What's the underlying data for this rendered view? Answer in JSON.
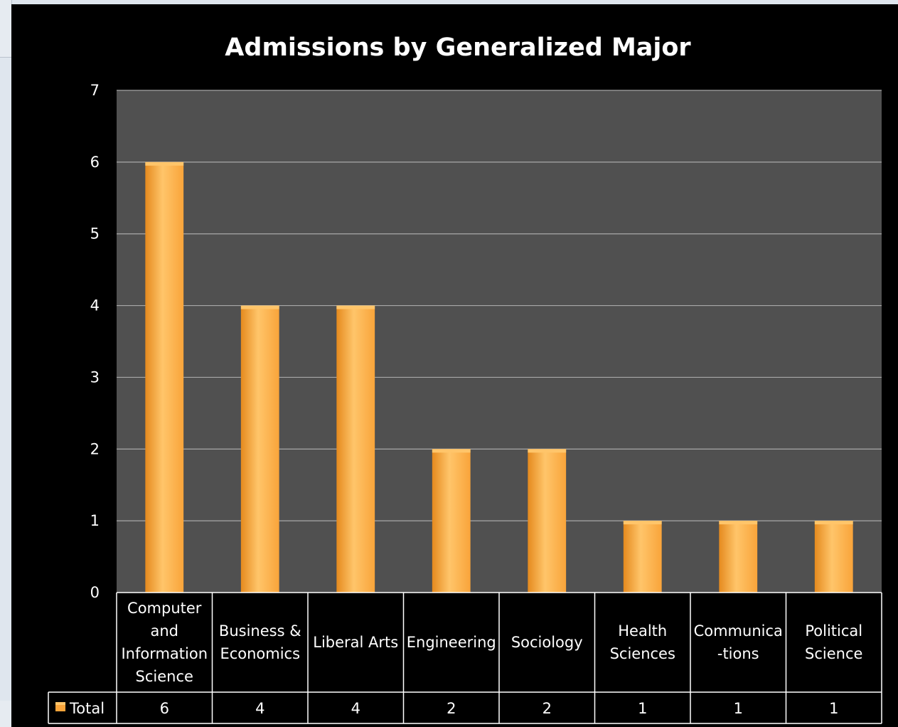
{
  "chart_data": {
    "type": "bar",
    "title": "Admissions by Generalized Major",
    "categories": [
      [
        "Computer",
        "and",
        "Information",
        "Science"
      ],
      [
        "Business &",
        "Economics"
      ],
      [
        "Liberal Arts"
      ],
      [
        "Engineering"
      ],
      [
        "Sociology"
      ],
      [
        "Health",
        "Sciences"
      ],
      [
        "Communica",
        "-tions"
      ],
      [
        "Political",
        "Science"
      ]
    ],
    "series": [
      {
        "name": "Total",
        "values": [
          6,
          4,
          4,
          2,
          2,
          1,
          1,
          1
        ]
      }
    ],
    "ylim": [
      0,
      7
    ],
    "yticks": [
      0,
      1,
      2,
      3,
      4,
      5,
      6,
      7
    ],
    "grid": true,
    "legend": "data-table-left",
    "data_table": true
  },
  "colors": {
    "background": "#000000",
    "plot_area": "#505050",
    "bar_fill": "#f9a43a",
    "bar_highlight": "#ffc56a",
    "bar_shadow": "#e58a1e",
    "grid": "#a8a8a8",
    "text": "#ffffff"
  }
}
